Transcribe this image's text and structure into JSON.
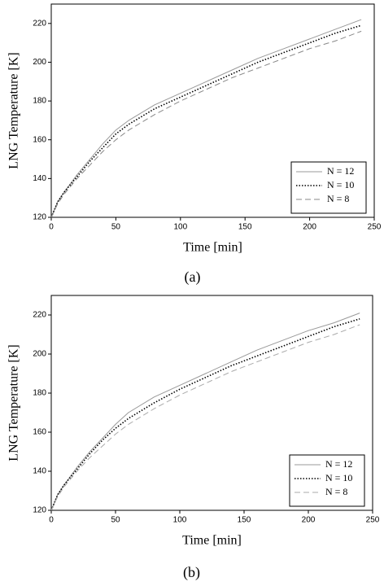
{
  "chart_data": [
    {
      "type": "line",
      "caption": "(a)",
      "xlabel": "Time [min]",
      "ylabel": "LNG Temperature [K]",
      "x": [
        0,
        5,
        10,
        20,
        30,
        40,
        50,
        60,
        80,
        100,
        120,
        140,
        160,
        180,
        200,
        220,
        240
      ],
      "series": [
        {
          "name": "N = 12",
          "color": "#999999",
          "style": "solid",
          "values": [
            120,
            128,
            133,
            142,
            150,
            158,
            165,
            170,
            178,
            184,
            190,
            196,
            202,
            207,
            212,
            217,
            222
          ]
        },
        {
          "name": "N = 10",
          "color": "#000000",
          "style": "dotted",
          "values": [
            120,
            128,
            133,
            141,
            149,
            156,
            163,
            168,
            176,
            182,
            188,
            194,
            200,
            205,
            210,
            215,
            219
          ]
        },
        {
          "name": "N = 8",
          "color": "#888888",
          "style": "dashed",
          "values": [
            120,
            127,
            132,
            140,
            147,
            154,
            160,
            165,
            173,
            180,
            186,
            192,
            197,
            202,
            207,
            211,
            216
          ]
        }
      ],
      "xlim": [
        0,
        250
      ],
      "xticks": [
        0,
        50,
        100,
        150,
        200,
        250
      ],
      "ylim": [
        120,
        230
      ],
      "yticks": [
        120,
        140,
        160,
        180,
        200,
        220
      ],
      "legend": "lower right"
    },
    {
      "type": "line",
      "caption": "(b)",
      "xlabel": "Time [min]",
      "ylabel": "LNG Temperature [K]",
      "x": [
        0,
        5,
        10,
        20,
        30,
        40,
        50,
        60,
        80,
        100,
        120,
        140,
        160,
        180,
        200,
        220,
        240
      ],
      "series": [
        {
          "name": "N = 12",
          "color": "#999999",
          "style": "solid",
          "values": [
            120,
            128,
            133,
            142,
            150,
            157,
            164,
            170,
            178,
            184,
            190,
            196,
            202,
            207,
            212,
            216,
            221
          ]
        },
        {
          "name": "N = 10",
          "color": "#000000",
          "style": "dotted",
          "values": [
            120,
            128,
            133,
            141,
            149,
            156,
            162,
            167,
            175,
            182,
            188,
            194,
            199,
            204,
            209,
            214,
            218
          ]
        },
        {
          "name": "N = 8",
          "color": "#aaaaaa",
          "style": "dashed",
          "values": [
            120,
            127,
            132,
            140,
            147,
            153,
            159,
            164,
            172,
            179,
            185,
            191,
            196,
            201,
            206,
            210,
            215
          ]
        }
      ],
      "xlim": [
        0,
        250
      ],
      "xticks": [
        0,
        50,
        100,
        150,
        200,
        250
      ],
      "ylim": [
        120,
        230
      ],
      "yticks": [
        120,
        140,
        160,
        180,
        200,
        220
      ],
      "legend": "lower right"
    }
  ]
}
